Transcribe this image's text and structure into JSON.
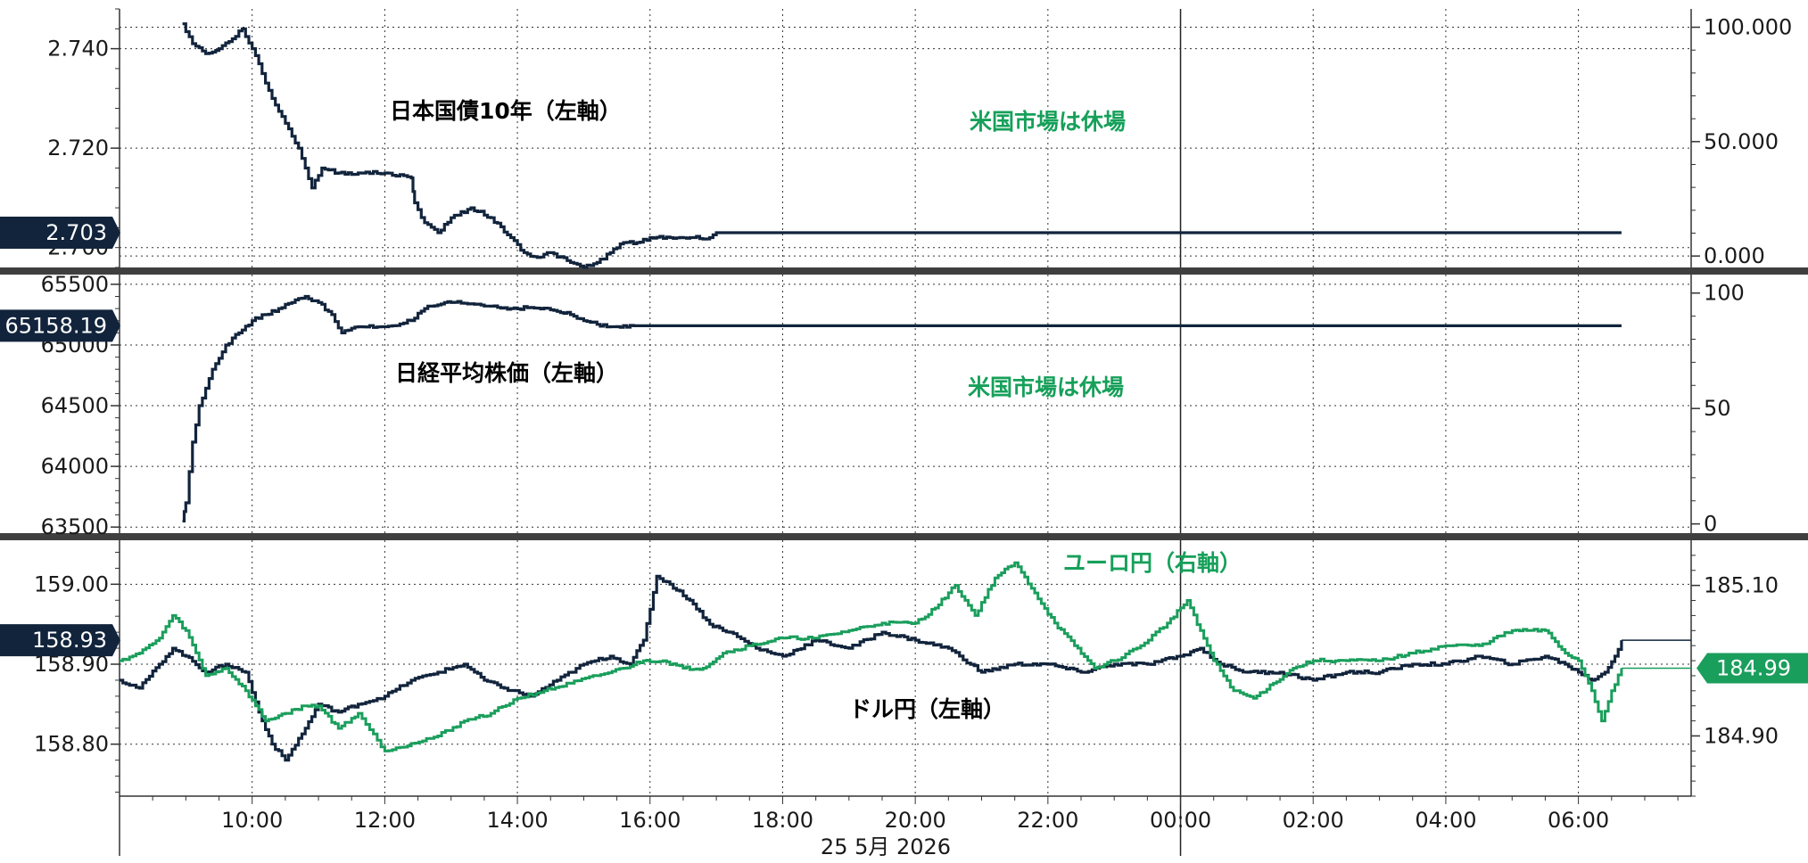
{
  "colors": {
    "navy": "#12243c",
    "green": "#1a9e5c",
    "annotation_green": "#16a05a",
    "grid": "#333333",
    "panel_separator": "#3f3f3f"
  },
  "chart_data": [
    {
      "type": "line",
      "panel": "top",
      "series": [
        {
          "name": "日本国債10年",
          "axis": "left",
          "color": "#12243c",
          "x": [
            8.95,
            9.1,
            9.3,
            9.5,
            9.7,
            9.85,
            10.0,
            10.15,
            10.3,
            10.5,
            10.7,
            10.9,
            11.05,
            11.3,
            11.6,
            12.0,
            12.4,
            12.45,
            12.6,
            12.8,
            13.0,
            13.3,
            13.6,
            13.9,
            14.1,
            14.3,
            14.5,
            14.8,
            15.0,
            15.2,
            15.4,
            15.6,
            15.8,
            16.0,
            16.3,
            16.6,
            16.9,
            17.0,
            30.65
          ],
          "values": [
            2.745,
            2.741,
            2.739,
            2.74,
            2.742,
            2.744,
            2.74,
            2.735,
            2.73,
            2.725,
            2.72,
            2.712,
            2.716,
            2.715,
            2.715,
            2.715,
            2.714,
            2.709,
            2.705,
            2.703,
            2.706,
            2.708,
            2.706,
            2.702,
            2.699,
            2.698,
            2.699,
            2.697,
            2.696,
            2.697,
            2.699,
            2.701,
            2.701,
            2.702,
            2.702,
            2.702,
            2.702,
            2.703,
            2.703
          ]
        }
      ],
      "y_left": {
        "ylim": [
          2.696,
          2.748
        ],
        "ticks": [
          2.74,
          2.72
        ],
        "tick_labels": [
          "2.740",
          "2.720"
        ],
        "partial_tick_label": "2.700"
      },
      "y_right": {
        "ylim": [
          -5,
          108
        ],
        "ticks": [
          100,
          50,
          0
        ],
        "tick_labels": [
          "100.000",
          "50.000",
          "0.000"
        ]
      },
      "last_value_tag": "2.703",
      "annotations": [
        "日本国債10年（左軸）",
        "米国市場は休場"
      ]
    },
    {
      "type": "line",
      "panel": "middle",
      "series": [
        {
          "name": "日経平均株価",
          "axis": "left",
          "color": "#12243c",
          "x": [
            8.95,
            9.0,
            9.1,
            9.2,
            9.4,
            9.6,
            9.8,
            10.0,
            10.2,
            10.4,
            10.6,
            10.8,
            11.0,
            11.2,
            11.35,
            11.6,
            12.0,
            12.4,
            12.6,
            12.8,
            13.0,
            13.3,
            13.6,
            13.9,
            14.2,
            14.5,
            14.8,
            15.0,
            15.2,
            15.4,
            15.6,
            15.75,
            30.65
          ],
          "values": [
            63550,
            63700,
            64200,
            64500,
            64800,
            65000,
            65100,
            65200,
            65250,
            65300,
            65350,
            65400,
            65350,
            65250,
            65100,
            65150,
            65150,
            65200,
            65300,
            65330,
            65350,
            65340,
            65320,
            65300,
            65310,
            65290,
            65250,
            65200,
            65170,
            65150,
            65160,
            65158.19,
            65158.19
          ]
        }
      ],
      "y_left": {
        "ylim": [
          63450,
          65580
        ],
        "ticks": [
          65500,
          65000,
          64500,
          64000,
          63500
        ],
        "tick_labels": [
          "65500",
          "65000",
          "64500",
          "64000",
          "63500"
        ]
      },
      "y_right": {
        "ylim": [
          -4,
          108
        ],
        "ticks": [
          100,
          50,
          0
        ],
        "tick_labels": [
          "100",
          "50",
          "0"
        ]
      },
      "last_value_tag": "65158.19",
      "annotations": [
        "日経平均株価（左軸）",
        "米国市場は休場"
      ]
    },
    {
      "type": "line",
      "panel": "bottom",
      "series": [
        {
          "name": "ドル円",
          "axis": "left",
          "color": "#12243c",
          "x": [
            8.0,
            8.3,
            8.6,
            8.8,
            9.0,
            9.3,
            9.6,
            9.9,
            10.1,
            10.3,
            10.5,
            10.8,
            11.0,
            11.3,
            11.6,
            12.0,
            12.4,
            12.8,
            13.2,
            13.5,
            13.8,
            14.2,
            14.6,
            15.0,
            15.4,
            15.7,
            15.9,
            16.1,
            16.3,
            16.6,
            16.9,
            17.2,
            17.6,
            18.0,
            18.5,
            19.0,
            19.5,
            20.0,
            20.5,
            21.0,
            21.5,
            22.0,
            22.5,
            23.0,
            23.5,
            24.0,
            24.3,
            24.6,
            25.0,
            25.5,
            26.0,
            26.5,
            27.0,
            27.5,
            28.0,
            28.5,
            29.0,
            29.5,
            29.8,
            30.0,
            30.2,
            30.4,
            30.55,
            30.65
          ],
          "values": [
            158.88,
            158.87,
            158.9,
            158.92,
            158.91,
            158.89,
            158.9,
            158.89,
            158.84,
            158.8,
            158.78,
            158.82,
            158.85,
            158.84,
            158.85,
            158.86,
            158.88,
            158.89,
            158.9,
            158.88,
            158.87,
            158.86,
            158.88,
            158.9,
            158.91,
            158.9,
            158.93,
            159.01,
            159.0,
            158.98,
            158.95,
            158.94,
            158.92,
            158.91,
            158.93,
            158.92,
            158.94,
            158.93,
            158.92,
            158.89,
            158.9,
            158.9,
            158.89,
            158.9,
            158.9,
            158.91,
            158.92,
            158.9,
            158.89,
            158.89,
            158.88,
            158.89,
            158.89,
            158.9,
            158.9,
            158.91,
            158.9,
            158.91,
            158.9,
            158.89,
            158.88,
            158.89,
            158.91,
            158.93
          ]
        },
        {
          "name": "ユーロ円",
          "axis": "right",
          "color": "#1a9e5c",
          "x": [
            8.0,
            8.3,
            8.6,
            8.8,
            9.0,
            9.3,
            9.6,
            9.9,
            10.2,
            10.5,
            10.8,
            11.0,
            11.3,
            11.6,
            12.0,
            12.4,
            12.8,
            13.2,
            13.6,
            14.0,
            14.4,
            14.8,
            15.2,
            15.6,
            15.9,
            16.2,
            16.5,
            16.8,
            17.1,
            17.5,
            18.0,
            18.5,
            19.0,
            19.5,
            20.0,
            20.3,
            20.6,
            20.9,
            21.2,
            21.5,
            21.8,
            22.1,
            22.4,
            22.7,
            23.0,
            23.4,
            23.8,
            24.1,
            24.3,
            24.5,
            24.8,
            25.1,
            25.4,
            25.7,
            26.0,
            26.5,
            27.0,
            27.5,
            28.0,
            28.5,
            29.0,
            29.5,
            29.8,
            30.0,
            30.2,
            30.35,
            30.5,
            30.65
          ],
          "values": [
            185.0,
            185.01,
            185.03,
            185.06,
            185.04,
            184.98,
            184.99,
            184.96,
            184.92,
            184.93,
            184.94,
            184.94,
            184.91,
            184.93,
            184.88,
            184.89,
            184.9,
            184.92,
            184.93,
            184.95,
            184.96,
            184.97,
            184.98,
            184.99,
            185.0,
            185.0,
            184.99,
            184.99,
            185.01,
            185.02,
            185.03,
            185.03,
            185.04,
            185.05,
            185.05,
            185.07,
            185.1,
            185.06,
            185.11,
            185.13,
            185.09,
            185.05,
            185.02,
            184.99,
            185.0,
            185.02,
            185.05,
            185.08,
            185.04,
            185.0,
            184.96,
            184.95,
            184.97,
            184.99,
            185.0,
            185.0,
            185.0,
            185.01,
            185.02,
            185.02,
            185.04,
            185.04,
            185.01,
            185.0,
            184.96,
            184.92,
            184.96,
            184.99
          ]
        }
      ],
      "y_left": {
        "ylim": [
          158.735,
          159.055
        ],
        "ticks": [
          159.0,
          158.9,
          158.8
        ],
        "tick_labels": [
          "159.00",
          "158.90",
          "158.80"
        ]
      },
      "y_right": {
        "ylim": [
          184.82,
          185.16
        ],
        "ticks": [
          185.1,
          184.9
        ],
        "tick_labels": [
          "185.10",
          "184.90"
        ]
      },
      "last_value_tags": {
        "left": "158.93",
        "right": "184.99"
      },
      "annotations": [
        "ユーロ円（右軸）",
        "ドル円（左軸）"
      ]
    }
  ],
  "x_axis": {
    "range_hours": [
      8.0,
      31.7
    ],
    "tick_hours": [
      10,
      12,
      14,
      16,
      18,
      20,
      22,
      24,
      26,
      28,
      30
    ],
    "tick_labels": [
      "10:00",
      "12:00",
      "14:00",
      "16:00",
      "18:00",
      "20:00",
      "22:00",
      "00:00",
      "02:00",
      "04:00",
      "06:00"
    ],
    "date_label": "25 5月 2026",
    "day_boundary_hour": 24
  }
}
